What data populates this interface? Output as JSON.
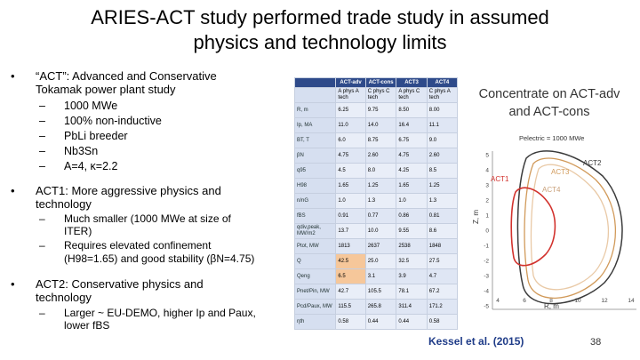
{
  "slide": {
    "title_line1": "ARIES-ACT study performed trade study in assumed",
    "title_line2": "physics and technology limits",
    "bullets": [
      {
        "marker": "•",
        "lines": [
          "“ACT”: Advanced and Conservative",
          "Tokamak power plant study"
        ],
        "subitems": [
          "1000 MWe",
          "100% non-inductive",
          "PbLi breeder",
          "Nb3Sn",
          "A=4, κ=2.2"
        ]
      },
      {
        "marker": "•",
        "lines": [
          "ACT1:  More aggressive physics and",
          "technology"
        ],
        "subitems": [
          "Much smaller (1000 MWe at size of",
          "ITER)",
          "Requires elevated confinement",
          "(H98=1.65) and good stability (βN=4.75)"
        ]
      },
      {
        "marker": "•",
        "lines": [
          "ACT2: Conservative physics and",
          "technology"
        ],
        "subitems": [
          "Larger ~ EU-DEMO, higher Ip and Paux,",
          "lower fBS"
        ]
      }
    ],
    "dash": "–",
    "concentrate_line1": "Concentrate on ACT-adv",
    "concentrate_line2": "and ACT-cons",
    "citation": "Kessel et al. (2015)",
    "page_number": "38"
  },
  "table": {
    "headers": [
      "",
      "ACT-adv",
      "ACT-cons",
      "ACT3",
      "ACT4"
    ],
    "rows": [
      [
        "",
        "A phys A tech",
        "C phys C tech",
        "A phys C tech",
        "C phys A tech"
      ],
      [
        "R, m",
        "6.25",
        "9.75",
        "8.50",
        "8.00"
      ],
      [
        "Ip, MA",
        "11.0",
        "14.0",
        "16.4",
        "11.1"
      ],
      [
        "BT, T",
        "6.0",
        "8.75",
        "6.75",
        "9.0"
      ],
      [
        "βN",
        "4.75",
        "2.60",
        "4.75",
        "2.60"
      ],
      [
        "q95",
        "4.5",
        "8.0",
        "4.25",
        "8.5"
      ],
      [
        "H98",
        "1.65",
        "1.25",
        "1.65",
        "1.25"
      ],
      [
        "n/nG",
        "1.0",
        "1.3",
        "1.0",
        "1.3"
      ],
      [
        "fBS",
        "0.91",
        "0.77",
        "0.86",
        "0.81"
      ],
      [
        "qdiv,peak, MW/m2",
        "13.7",
        "10.0",
        "9.55",
        "8.6"
      ],
      [
        "Ptot, MW",
        "1813",
        "2637",
        "2538",
        "1848"
      ],
      [
        "Q",
        "42.5",
        "25.0",
        "32.5",
        "27.5"
      ],
      [
        "Qeng",
        "6.5",
        "3.1",
        "3.9",
        "4.7"
      ],
      [
        "Pnet/Pin, MW",
        "42.7",
        "105.5",
        "78.1",
        "67.2"
      ],
      [
        "Pcd/Paux, MW",
        "115.5",
        "265.8",
        "311.4",
        "171.2"
      ],
      [
        "ηth",
        "0.58",
        "0.44",
        "0.44",
        "0.58"
      ]
    ]
  },
  "plot": {
    "annotation": "Pelectric = 1000 MWe",
    "curves": [
      {
        "name": "ACT1",
        "color": "#d2322d"
      },
      {
        "name": "ACT2",
        "color": "#3a3a3a"
      },
      {
        "name": "ACT3",
        "color": "#d19a5a"
      },
      {
        "name": "ACT4",
        "color": "#e9c9a6"
      }
    ],
    "xlabel": "R, m",
    "ylabel": "Z, m",
    "xticks": [
      "4",
      "6",
      "8",
      "10",
      "12",
      "14"
    ],
    "yticks": [
      "5",
      "4",
      "3",
      "2",
      "1",
      "0",
      "-1",
      "-2",
      "-3",
      "-4",
      "-5"
    ]
  }
}
